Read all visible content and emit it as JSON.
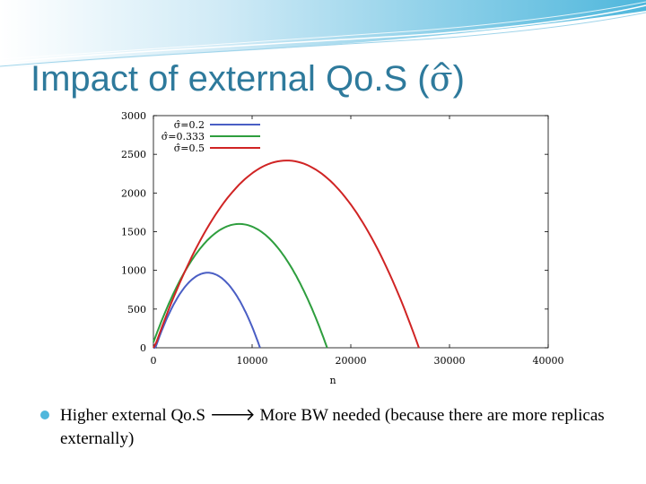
{
  "slide": {
    "title": "Impact of external Qo.S (",
    "title_symbol": "σ",
    "title_symbol_hat": "^",
    "title_close": ")",
    "bullet": {
      "part1": "Higher external Qo.S",
      "arrow": "🡒",
      "part2": "More BW needed (because there are more replicas externally)"
    }
  },
  "colors": {
    "title": "#2e7a9c",
    "bullet": "#4fb7dc",
    "band": "#4fb7dc"
  },
  "chart_data": {
    "type": "line",
    "xlabel": "n",
    "ylabel": "",
    "xlim": [
      0,
      40000
    ],
    "ylim": [
      0,
      3000
    ],
    "x_ticks": [
      0,
      10000,
      20000,
      30000,
      40000
    ],
    "y_ticks": [
      0,
      500,
      1000,
      1500,
      2000,
      2500,
      3000
    ],
    "legend_position": "top-left",
    "series": [
      {
        "name": "σ̂=0.2",
        "color": "#4a5ec4",
        "peak_x": 5500,
        "peak_y": 970,
        "end_x": 10800
      },
      {
        "name": "σ̂=0.333",
        "color": "#2e9e3e",
        "peak_x": 8700,
        "peak_y": 1600,
        "end_x": 17600
      },
      {
        "name": "σ̂=0.5",
        "color": "#d02424",
        "peak_x": 13500,
        "peak_y": 2420,
        "end_x": 26900
      }
    ]
  }
}
